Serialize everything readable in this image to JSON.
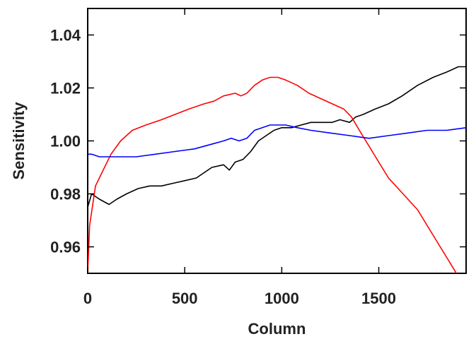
{
  "chart_data": {
    "type": "line",
    "title": "",
    "xlabel": "Column",
    "ylabel": "Sensitivity",
    "xlim": [
      0,
      1950
    ],
    "ylim": [
      0.95,
      1.05
    ],
    "x_ticks": [
      0,
      500,
      1000,
      1500
    ],
    "x_tick_labels": [
      "0",
      "500",
      "1000",
      "1500"
    ],
    "y_ticks": [
      0.96,
      0.98,
      1.0,
      1.02,
      1.04
    ],
    "y_tick_labels": [
      "0.96",
      "0.98",
      "1.00",
      "1.02",
      "1.04"
    ],
    "grid": false,
    "series": [
      {
        "color": "#000000",
        "x": [
          0,
          20,
          60,
          110,
          150,
          200,
          260,
          320,
          380,
          440,
          500,
          560,
          600,
          640,
          700,
          730,
          760,
          800,
          840,
          880,
          920,
          960,
          1000,
          1050,
          1100,
          1150,
          1200,
          1260,
          1300,
          1350,
          1380,
          1420,
          1480,
          1550,
          1620,
          1700,
          1780,
          1850,
          1910,
          1950
        ],
        "y": [
          0.975,
          0.98,
          0.978,
          0.976,
          0.978,
          0.98,
          0.982,
          0.983,
          0.983,
          0.984,
          0.985,
          0.986,
          0.988,
          0.99,
          0.991,
          0.989,
          0.992,
          0.993,
          0.996,
          1.0,
          1.002,
          1.004,
          1.005,
          1.005,
          1.006,
          1.007,
          1.007,
          1.007,
          1.008,
          1.007,
          1.009,
          1.01,
          1.012,
          1.014,
          1.017,
          1.021,
          1.024,
          1.026,
          1.028,
          1.028
        ]
      },
      {
        "color": "#ff0000",
        "x": [
          0,
          10,
          40,
          80,
          120,
          170,
          230,
          300,
          380,
          450,
          520,
          600,
          650,
          700,
          760,
          790,
          820,
          860,
          900,
          940,
          980,
          1020,
          1080,
          1140,
          1200,
          1260,
          1320,
          1360,
          1400,
          1450,
          1500,
          1550,
          1600,
          1650,
          1700,
          1750,
          1800,
          1850,
          1900
        ],
        "y": [
          0.95,
          0.968,
          0.983,
          0.989,
          0.995,
          1.0,
          1.004,
          1.006,
          1.008,
          1.01,
          1.012,
          1.014,
          1.015,
          1.017,
          1.018,
          1.017,
          1.018,
          1.021,
          1.023,
          1.024,
          1.024,
          1.023,
          1.021,
          1.018,
          1.016,
          1.014,
          1.012,
          1.009,
          1.004,
          0.998,
          0.992,
          0.986,
          0.982,
          0.978,
          0.974,
          0.968,
          0.962,
          0.956,
          0.95
        ]
      },
      {
        "color": "#0000ff",
        "x": [
          0,
          20,
          60,
          110,
          160,
          250,
          350,
          450,
          550,
          650,
          700,
          740,
          780,
          820,
          860,
          900,
          940,
          980,
          1020,
          1080,
          1150,
          1250,
          1350,
          1450,
          1550,
          1650,
          1750,
          1850,
          1950
        ],
        "y": [
          0.995,
          0.995,
          0.994,
          0.994,
          0.994,
          0.994,
          0.995,
          0.996,
          0.997,
          0.999,
          1.0,
          1.001,
          1.0,
          1.001,
          1.004,
          1.005,
          1.006,
          1.006,
          1.006,
          1.005,
          1.004,
          1.003,
          1.002,
          1.001,
          1.002,
          1.003,
          1.004,
          1.004,
          1.005
        ]
      }
    ]
  }
}
